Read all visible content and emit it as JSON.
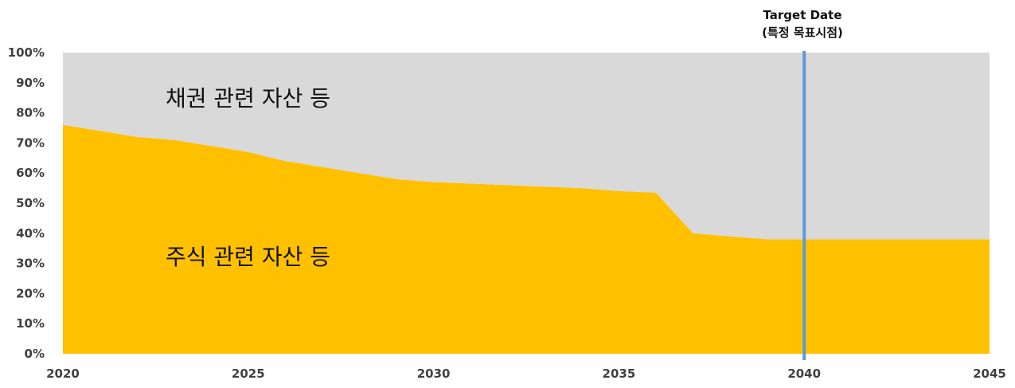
{
  "chart_data": {
    "type": "area",
    "x": [
      2020,
      2021,
      2022,
      2023,
      2024,
      2025,
      2026,
      2027,
      2028,
      2029,
      2030,
      2031,
      2032,
      2033,
      2034,
      2035,
      2036,
      2037,
      2038,
      2039,
      2040,
      2041,
      2042,
      2043,
      2044,
      2045
    ],
    "series": [
      {
        "name": "주식 관련 자산 등",
        "color": "#FFC000",
        "values": [
          76,
          74,
          72,
          71,
          69,
          67,
          64,
          62,
          60,
          58,
          57,
          56.5,
          56,
          55.5,
          55,
          54,
          53.5,
          40,
          39,
          38,
          38,
          38,
          38,
          38,
          38,
          38
        ]
      },
      {
        "name": "채권 관련 자산 등",
        "color": "#D9D9D9",
        "values": [
          24,
          26,
          28,
          29,
          31,
          33,
          36,
          38,
          40,
          42,
          43,
          43.5,
          44,
          44.5,
          45,
          46,
          46.5,
          60,
          61,
          62,
          62,
          62,
          62,
          62,
          62,
          62
        ]
      }
    ],
    "xlim": [
      2020,
      2045
    ],
    "ylim": [
      0,
      100
    ],
    "x_ticks": [
      "2020",
      "2025",
      "2030",
      "2035",
      "2040",
      "2045"
    ],
    "y_ticks": [
      "0%",
      "10%",
      "20%",
      "30%",
      "40%",
      "50%",
      "60%",
      "70%",
      "80%",
      "90%",
      "100%"
    ],
    "grid": false,
    "legend": "none",
    "target": {
      "x": 2040,
      "label_line1": "Target Date",
      "label_line2": "(특정 목표시점)",
      "color": "#5B9BD5"
    }
  }
}
